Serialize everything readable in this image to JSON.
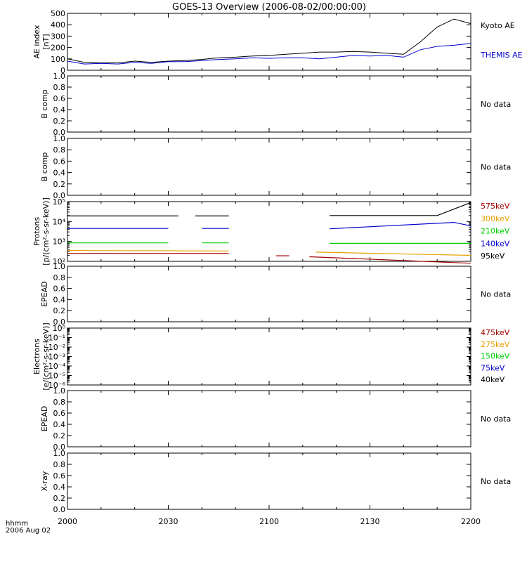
{
  "title": "GOES-13 Overview (2006-08-02/00:00:00)",
  "time_axis_label": [
    "hhmm",
    "2006 Aug 02"
  ],
  "time_ticks": [
    "2000",
    "2030",
    "2100",
    "2130",
    "2200"
  ],
  "colors": {
    "black": "#000000",
    "blue": "#0000d0",
    "green": "#00d000",
    "orange": "#e8a000",
    "red": "#a00000"
  },
  "no_data_label": "No data",
  "chart_data": [
    {
      "type": "line",
      "ylabel": [
        "AE index",
        "[nT]"
      ],
      "ylim": [
        0,
        500
      ],
      "yticks": [
        "0",
        "100",
        "200",
        "300",
        "400",
        "500"
      ],
      "x_minutes": [
        0,
        5,
        10,
        15,
        20,
        25,
        30,
        35,
        40,
        45,
        50,
        55,
        60,
        65,
        70,
        75,
        80,
        85,
        90,
        95,
        100,
        105,
        110,
        115,
        120
      ],
      "series": [
        {
          "name": "Kyoto AE",
          "color": "#000000",
          "values": [
            100,
            70,
            65,
            65,
            80,
            70,
            80,
            85,
            95,
            110,
            115,
            125,
            130,
            140,
            150,
            160,
            160,
            165,
            160,
            150,
            140,
            250,
            380,
            450,
            410
          ]
        },
        {
          "name": "THEMIS AE",
          "color": "#0000d0",
          "values": [
            80,
            55,
            60,
            55,
            70,
            60,
            75,
            75,
            85,
            95,
            100,
            110,
            105,
            110,
            110,
            100,
            115,
            130,
            125,
            130,
            115,
            180,
            210,
            220,
            235
          ]
        }
      ]
    },
    {
      "type": "line",
      "ylabel": [
        "B comp"
      ],
      "ylim": [
        0,
        1
      ],
      "yticks": [
        "0.0",
        "0.2",
        "0.4",
        "0.6",
        "0.8",
        "1.0"
      ],
      "series": []
    },
    {
      "type": "line",
      "ylabel": [
        "B comp"
      ],
      "ylim": [
        0,
        1
      ],
      "yticks": [
        "0.0",
        "0.2",
        "0.4",
        "0.6",
        "0.8",
        "1.0"
      ],
      "series": []
    },
    {
      "type": "line",
      "ylabel": [
        "Protons",
        "[p/(cm²-s-sr-keV)]"
      ],
      "scale": "log",
      "ylim": [
        100,
        100000
      ],
      "yticks": [
        "10²",
        "10³",
        "10⁴",
        "10⁵"
      ],
      "series": [
        {
          "name": "575keV",
          "color": "#a00000",
          "segments": [
            {
              "x": [
                0,
                48
              ],
              "y": [
                250,
                250
              ]
            },
            {
              "x": [
                62,
                66
              ],
              "y": [
                190,
                190
              ]
            },
            {
              "x": [
                72,
                120
              ],
              "y": [
                170,
                80
              ]
            }
          ]
        },
        {
          "name": "300keV",
          "color": "#e8a000",
          "segments": [
            {
              "x": [
                0,
                48
              ],
              "y": [
                350,
                330
              ]
            },
            {
              "x": [
                74,
                120
              ],
              "y": [
                290,
                200
              ]
            }
          ]
        },
        {
          "name": "210keV",
          "color": "#00d000",
          "segments": [
            {
              "x": [
                0,
                30
              ],
              "y": [
                850,
                850
              ]
            },
            {
              "x": [
                40,
                48
              ],
              "y": [
                850,
                850
              ]
            },
            {
              "x": [
                78,
                120
              ],
              "y": [
                800,
                800
              ]
            }
          ]
        },
        {
          "name": "140keV",
          "color": "#0000d0",
          "segments": [
            {
              "x": [
                0,
                30
              ],
              "y": [
                4500,
                4500
              ]
            },
            {
              "x": [
                40,
                48
              ],
              "y": [
                4500,
                4500
              ]
            },
            {
              "x": [
                78,
                115,
                120
              ],
              "y": [
                4300,
                9000,
                6000
              ]
            }
          ]
        },
        {
          "name": "95keV",
          "color": "#000000",
          "segments": [
            {
              "x": [
                0,
                33
              ],
              "y": [
                19000,
                19000
              ]
            },
            {
              "x": [
                38,
                48
              ],
              "y": [
                19000,
                19000
              ]
            },
            {
              "x": [
                78,
                110,
                120
              ],
              "y": [
                20000,
                20000,
                90000
              ]
            }
          ]
        }
      ]
    },
    {
      "type": "line",
      "ylabel": [
        "EPEAD"
      ],
      "ylim": [
        0,
        1
      ],
      "yticks": [
        "0.0",
        "0.2",
        "0.4",
        "0.6",
        "0.8",
        "1.0"
      ],
      "series": []
    },
    {
      "type": "line",
      "ylabel": [
        "Electrons",
        "[e/(cm²-s-sr-keV)]"
      ],
      "scale": "log",
      "ylim": [
        1e-06,
        1
      ],
      "yticks": [
        "10⁻⁶",
        "10⁻⁵",
        "10⁻⁴",
        "10⁻³",
        "10⁻²",
        "10⁻¹",
        "10⁰"
      ],
      "series": [
        {
          "name": "475keV",
          "color": "#a00000",
          "segments": []
        },
        {
          "name": "275keV",
          "color": "#e8a000",
          "segments": []
        },
        {
          "name": "150keV",
          "color": "#00d000",
          "segments": []
        },
        {
          "name": "75keV",
          "color": "#0000d0",
          "segments": []
        },
        {
          "name": "40keV",
          "color": "#000000",
          "segments": []
        }
      ]
    },
    {
      "type": "line",
      "ylabel": [
        "EPEAD"
      ],
      "ylim": [
        0,
        1
      ],
      "yticks": [
        "0.0",
        "0.2",
        "0.4",
        "0.6",
        "0.8",
        "1.0"
      ],
      "series": []
    },
    {
      "type": "line",
      "ylabel": [
        "X-ray"
      ],
      "ylim": [
        0,
        1
      ],
      "yticks": [
        "0.0",
        "0.2",
        "0.4",
        "0.6",
        "0.8",
        "1.0"
      ],
      "series": []
    }
  ]
}
